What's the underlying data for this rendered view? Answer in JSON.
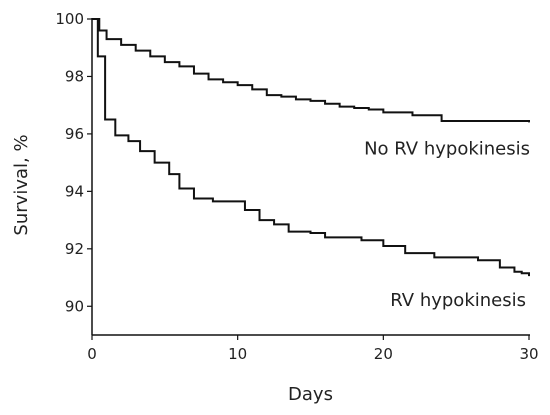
{
  "chart_data": {
    "type": "line",
    "step": true,
    "title": "",
    "xlabel": "Days",
    "ylabel": "Survival, %",
    "xlim": [
      0,
      30
    ],
    "ylim": [
      89,
      100
    ],
    "x_ticks": [
      0,
      10,
      20,
      30
    ],
    "y_ticks": [
      90,
      92,
      94,
      96,
      98,
      100
    ],
    "grid": false,
    "legend": "none",
    "line_color": "#111111",
    "series": [
      {
        "name": "No RV hypokinesis",
        "x": [
          0,
          0.5,
          1,
          2,
          3,
          4,
          5,
          6,
          7,
          8,
          9,
          10,
          11,
          12,
          13,
          14,
          15,
          16,
          17,
          18,
          19,
          20,
          22,
          24,
          25,
          30
        ],
        "y": [
          100,
          99.6,
          99.3,
          99.1,
          98.9,
          98.7,
          98.5,
          98.35,
          98.1,
          97.9,
          97.8,
          97.7,
          97.55,
          97.35,
          97.3,
          97.2,
          97.15,
          97.05,
          96.95,
          96.9,
          96.85,
          96.75,
          96.65,
          96.45,
          96.45,
          96.4
        ]
      },
      {
        "name": "RV hypokinesis",
        "x": [
          0,
          0.4,
          0.9,
          1.6,
          2.5,
          3.3,
          4.3,
          5.3,
          6,
          7,
          8.3,
          10.5,
          11.5,
          12.5,
          13.5,
          15,
          16,
          18.5,
          20,
          21.5,
          23.5,
          26.5,
          28,
          29,
          29.5,
          30
        ],
        "y": [
          100,
          98.7,
          96.5,
          95.95,
          95.75,
          95.4,
          95.0,
          94.6,
          94.1,
          93.75,
          93.65,
          93.35,
          93.0,
          92.85,
          92.6,
          92.55,
          92.4,
          92.3,
          92.1,
          91.85,
          91.7,
          91.6,
          91.35,
          91.2,
          91.15,
          91.05
        ]
      }
    ],
    "annotations": [
      {
        "text": "No RV hypokinesis",
        "x": 30,
        "y": 96.4
      },
      {
        "text": "RV hypokinesis",
        "x": 30,
        "y": 91.05
      }
    ]
  }
}
